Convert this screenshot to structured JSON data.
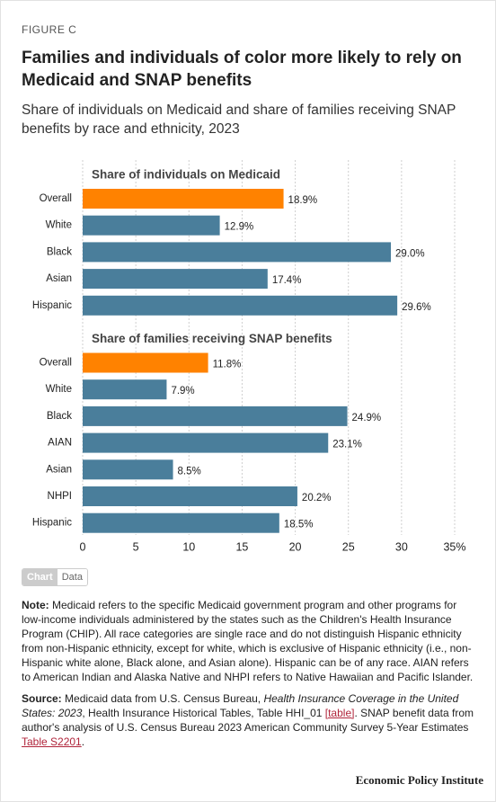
{
  "chart_data": {
    "type": "bar",
    "figure_label": "FIGURE C",
    "title": "Families and individuals of color more likely to rely on Medicaid and SNAP benefits",
    "subtitle": "Share of individuals on Medicaid and share of families receiving SNAP benefits by race and ethnicity, 2023",
    "groups": [
      {
        "title": "Share of individuals on Medicaid",
        "categories": [
          "Overall",
          "White",
          "Black",
          "Asian",
          "Hispanic"
        ],
        "values": [
          18.9,
          12.9,
          29.0,
          17.4,
          29.6
        ],
        "value_labels": [
          "18.9%",
          "12.9%",
          "29.0%",
          "17.4%",
          "29.6%"
        ],
        "colors": [
          "#ff8200",
          "#4a7e9b",
          "#4a7e9b",
          "#4a7e9b",
          "#4a7e9b"
        ]
      },
      {
        "title": "Share of families receiving SNAP benefits",
        "categories": [
          "Overall",
          "White",
          "Black",
          "AIAN",
          "Asian",
          "NHPI",
          "Hispanic"
        ],
        "values": [
          11.8,
          7.9,
          24.9,
          23.1,
          8.5,
          20.2,
          18.5
        ],
        "value_labels": [
          "11.8%",
          "7.9%",
          "24.9%",
          "23.1%",
          "8.5%",
          "20.2%",
          "18.5%"
        ],
        "colors": [
          "#ff8200",
          "#4a7e9b",
          "#4a7e9b",
          "#4a7e9b",
          "#4a7e9b",
          "#4a7e9b",
          "#4a7e9b"
        ]
      }
    ],
    "xlim": [
      0,
      35
    ],
    "xticks": [
      0,
      5,
      10,
      15,
      20,
      25,
      30,
      {
        "value": 35,
        "label": "35%"
      }
    ],
    "grid": true
  },
  "tabs": [
    "Chart",
    "Data"
  ],
  "note": {
    "label": "Note:",
    "text": " Medicaid refers to the specific Medicaid government program and other programs for low-income individuals administered by the states such as the Children's Health Insurance Program (CHIP). All race categories are single race and do not distinguish Hispanic ethnicity from non-Hispanic ethnicity, except for white, which is exclusive of Hispanic ethnicity (i.e., non-Hispanic white alone, Black alone, and Asian alone). Hispanic can be of any race. AIAN refers to American Indian and Alaska Native and NHPI refers to Native Hawaiian and Pacific Islander."
  },
  "source": {
    "label": "Source:",
    "parts": [
      " Medicaid data from U.S. Census Bureau, ",
      "Health Insurance Coverage in the United States: 2023",
      ", Health Insurance Historical Tables, Table HHI_01 ",
      "[table]",
      ". SNAP benefit data from author's analysis of U.S. Census Bureau 2023 American Community Survey 5-Year Estimates ",
      "Table S2201",
      "."
    ]
  },
  "footer": "Economic Policy Institute"
}
